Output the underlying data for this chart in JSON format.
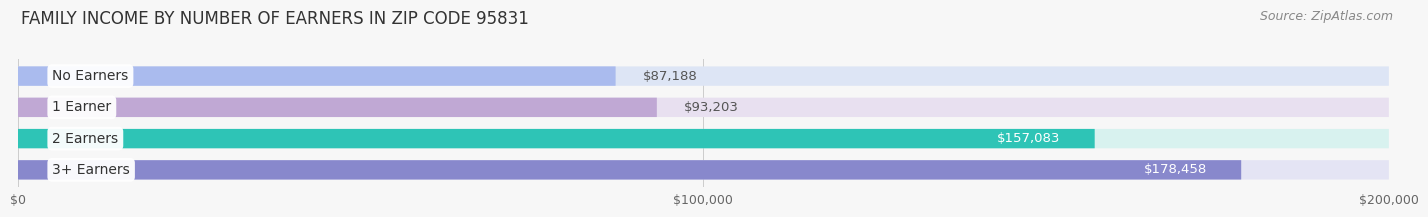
{
  "title": "FAMILY INCOME BY NUMBER OF EARNERS IN ZIP CODE 95831",
  "source": "Source: ZipAtlas.com",
  "categories": [
    "No Earners",
    "1 Earner",
    "2 Earners",
    "3+ Earners"
  ],
  "values": [
    87188,
    93203,
    157083,
    178458
  ],
  "bar_colors": [
    "#aabbee",
    "#c0a8d4",
    "#2ec4b6",
    "#8888cc"
  ],
  "bar_bg_colors": [
    "#dde5f5",
    "#e8e0f0",
    "#d8f2ef",
    "#e4e4f4"
  ],
  "value_labels": [
    "$87,188",
    "$93,203",
    "$157,083",
    "$178,458"
  ],
  "value_inside": [
    false,
    false,
    true,
    true
  ],
  "xlim": [
    0,
    200000
  ],
  "xtick_values": [
    0,
    100000,
    200000
  ],
  "xtick_labels": [
    "$0",
    "$100,000",
    "$200,000"
  ],
  "background_color": "#f7f7f7",
  "title_fontsize": 12,
  "source_fontsize": 9,
  "label_fontsize": 10,
  "value_fontsize": 9.5
}
